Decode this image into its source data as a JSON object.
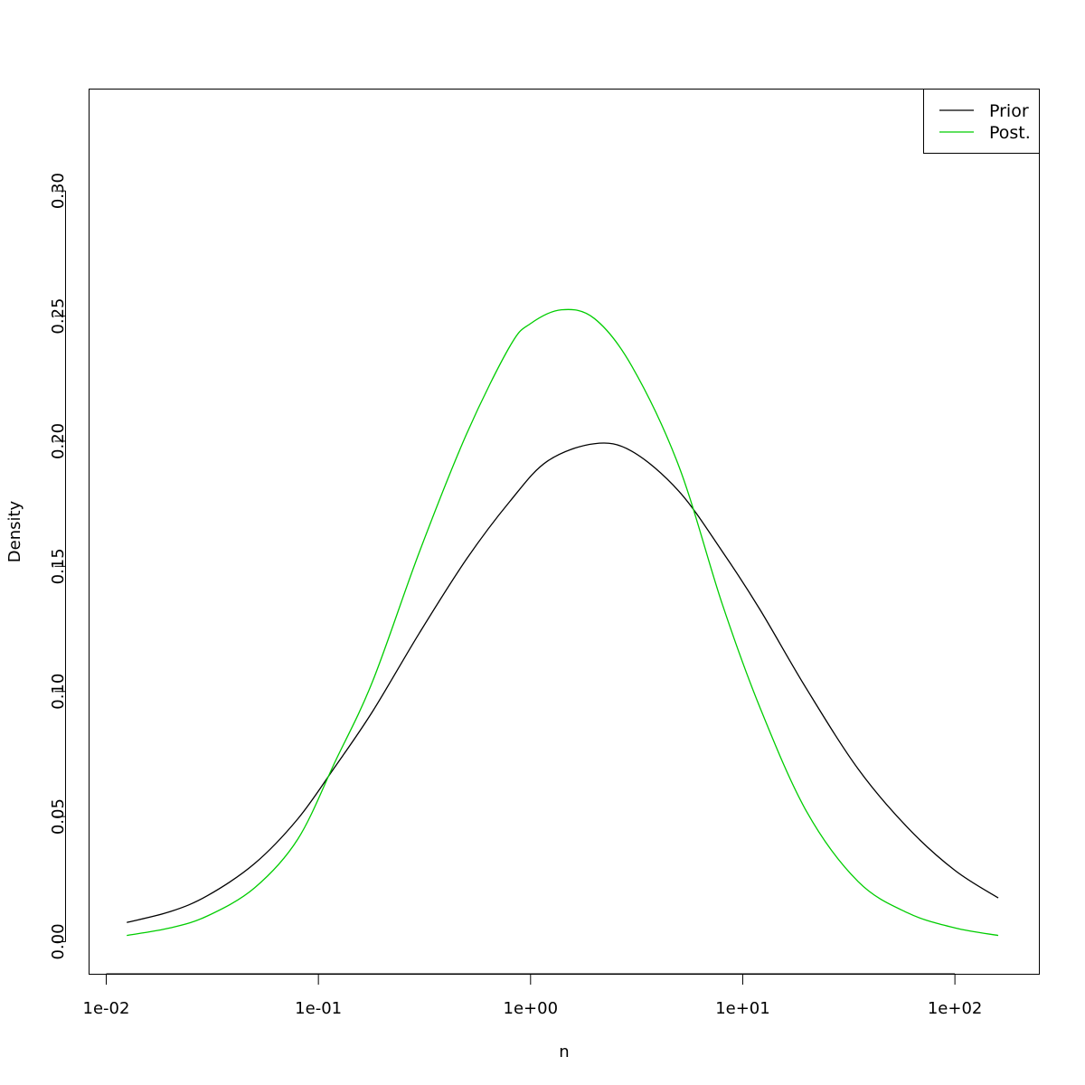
{
  "chart_data": {
    "type": "line",
    "title": "",
    "xlabel": "n",
    "ylabel": "Density",
    "x_scale": "log",
    "xlim": [
      0.0083,
      250
    ],
    "ylim": [
      -0.013,
      0.3407
    ],
    "x_ticks": [
      0.01,
      0.1,
      1,
      10,
      100
    ],
    "x_tick_labels": [
      "1e-02",
      "1e-01",
      "1e+00",
      "1e+01",
      "1e+02"
    ],
    "y_ticks": [
      0.0,
      0.05,
      0.1,
      0.15,
      0.2,
      0.25,
      0.3
    ],
    "y_tick_labels": [
      "0.00",
      "0.05",
      "0.10",
      "0.15",
      "0.20",
      "0.25",
      "0.30"
    ],
    "grid": false,
    "legend_position": "top-right",
    "series": [
      {
        "name": "Prior",
        "color": "#000000",
        "x": [
          0.0125,
          0.02,
          0.03,
          0.05,
          0.08,
          0.12,
          0.18,
          0.3,
          0.5,
          0.8,
          1.2,
          2.0,
          3.0,
          5.0,
          8.0,
          12,
          20,
          35,
          60,
          100,
          160
        ],
        "y": [
          0.0077,
          0.012,
          0.0184,
          0.0312,
          0.0491,
          0.07,
          0.092,
          0.1235,
          0.153,
          0.176,
          0.192,
          0.199,
          0.196,
          0.18,
          0.156,
          0.133,
          0.101,
          0.069,
          0.0455,
          0.0285,
          0.0175
        ]
      },
      {
        "name": "Post.",
        "color": "#00cd00",
        "x": [
          0.0125,
          0.02,
          0.03,
          0.05,
          0.08,
          0.12,
          0.18,
          0.3,
          0.5,
          0.8,
          1.0,
          1.4,
          2.0,
          3.0,
          5.0,
          8.0,
          12,
          20,
          35,
          60,
          100,
          160
        ],
        "y": [
          0.0025,
          0.0055,
          0.0103,
          0.0215,
          0.041,
          0.072,
          0.104,
          0.156,
          0.203,
          0.238,
          0.247,
          0.2525,
          0.249,
          0.23,
          0.19,
          0.135,
          0.094,
          0.052,
          0.024,
          0.0115,
          0.0055,
          0.0025
        ]
      }
    ]
  }
}
